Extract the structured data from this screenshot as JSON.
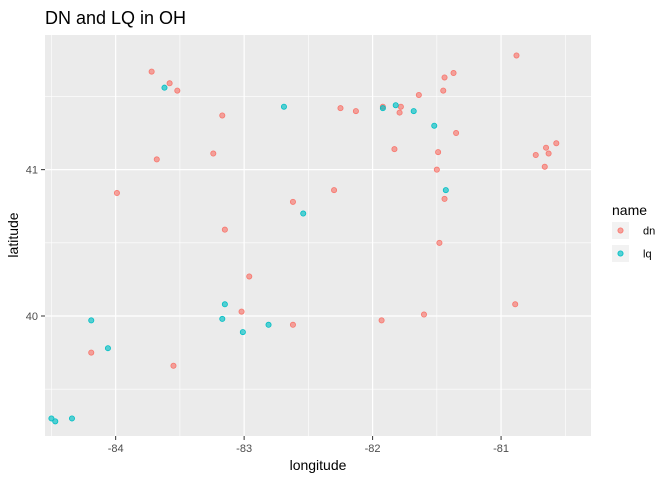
{
  "chart_data": {
    "type": "scatter",
    "title": "DN and LQ in OH",
    "xlabel": "longitude",
    "ylabel": "latitude",
    "xlim": [
      -84.55,
      -80.3
    ],
    "ylim": [
      39.18,
      41.92
    ],
    "x_ticks": [
      -84,
      -83,
      -82,
      -81
    ],
    "x_tick_labels": [
      "-84",
      "-83",
      "-82",
      "-81"
    ],
    "y_ticks": [
      40,
      41
    ],
    "y_tick_labels": [
      "40",
      "41"
    ],
    "grid": true,
    "legend": {
      "title": "name",
      "position": "right"
    },
    "series": [
      {
        "name": "dn",
        "color": "#F8766D",
        "points": [
          [
            -80.88,
            41.78
          ],
          [
            -83.72,
            41.67
          ],
          [
            -83.58,
            41.59
          ],
          [
            -83.52,
            41.54
          ],
          [
            -83.17,
            41.37
          ],
          [
            -83.68,
            41.07
          ],
          [
            -83.24,
            41.11
          ],
          [
            -83.99,
            40.84
          ],
          [
            -83.15,
            40.59
          ],
          [
            -82.62,
            40.78
          ],
          [
            -82.3,
            40.86
          ],
          [
            -82.25,
            41.42
          ],
          [
            -82.13,
            41.4
          ],
          [
            -81.92,
            41.43
          ],
          [
            -81.78,
            41.43
          ],
          [
            -81.79,
            41.39
          ],
          [
            -81.64,
            41.51
          ],
          [
            -81.45,
            41.54
          ],
          [
            -81.44,
            41.63
          ],
          [
            -81.37,
            41.66
          ],
          [
            -81.35,
            41.25
          ],
          [
            -81.83,
            41.14
          ],
          [
            -81.49,
            41.12
          ],
          [
            -81.5,
            41.0
          ],
          [
            -81.44,
            40.8
          ],
          [
            -81.48,
            40.5
          ],
          [
            -80.73,
            41.1
          ],
          [
            -80.65,
            41.15
          ],
          [
            -80.63,
            41.11
          ],
          [
            -80.66,
            41.02
          ],
          [
            -80.57,
            41.18
          ],
          [
            -82.96,
            40.27
          ],
          [
            -83.02,
            40.03
          ],
          [
            -82.62,
            39.94
          ],
          [
            -81.93,
            39.97
          ],
          [
            -81.6,
            40.01
          ],
          [
            -80.89,
            40.08
          ],
          [
            -84.19,
            39.75
          ],
          [
            -83.55,
            39.66
          ]
        ]
      },
      {
        "name": "lq",
        "color": "#00BFC4",
        "points": [
          [
            -83.62,
            41.56
          ],
          [
            -82.69,
            41.43
          ],
          [
            -81.92,
            41.42
          ],
          [
            -81.82,
            41.44
          ],
          [
            -81.68,
            41.4
          ],
          [
            -81.52,
            41.3
          ],
          [
            -81.43,
            40.86
          ],
          [
            -82.54,
            40.7
          ],
          [
            -83.15,
            40.08
          ],
          [
            -83.17,
            39.98
          ],
          [
            -83.01,
            39.89
          ],
          [
            -82.81,
            39.94
          ],
          [
            -84.19,
            39.97
          ],
          [
            -84.06,
            39.78
          ],
          [
            -84.5,
            39.3
          ],
          [
            -84.47,
            39.28
          ],
          [
            -84.34,
            39.3
          ]
        ]
      }
    ]
  }
}
